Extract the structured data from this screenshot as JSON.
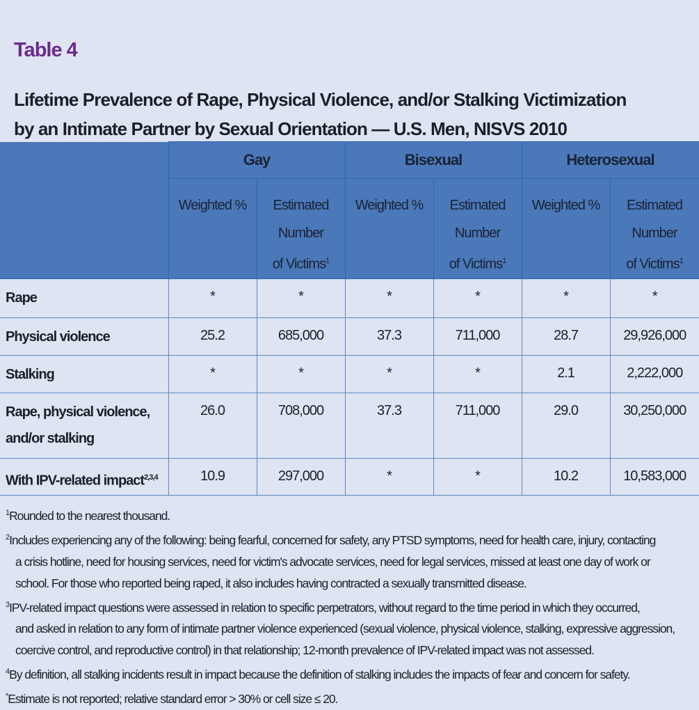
{
  "table_number": "Table 4",
  "title_lines": [
    "Lifetime Prevalence of Rape, Physical Violence, and/or Stalking Victimization",
    "by an Intimate Partner by Sexual Orientation — U.S. Men, NISVS 2010"
  ],
  "colors": {
    "title": "#6a2b8c",
    "header_bg": "#4a78b9",
    "page_bg": "#dfe4f2"
  },
  "groups": [
    "Gay",
    "Bisexual",
    "Heterosexual"
  ],
  "subheaders": {
    "weighted": "Weighted %",
    "est_1": "Estimated",
    "est_2": "Number",
    "est_3": "of Victims",
    "est_sup": "1"
  },
  "rows": [
    {
      "label": "Rape",
      "label2": "",
      "sup": "",
      "values": [
        "*",
        "*",
        "*",
        "*",
        "*",
        "*"
      ]
    },
    {
      "label": "Physical violence",
      "label2": "",
      "sup": "",
      "values": [
        "25.2",
        "685,000",
        "37.3",
        "711,000",
        "28.7",
        "29,926,000"
      ]
    },
    {
      "label": "Stalking",
      "label2": "",
      "sup": "",
      "values": [
        "*",
        "*",
        "*",
        "*",
        "2.1",
        "2,222,000"
      ]
    },
    {
      "label": "Rape, physical violence,",
      "label2": "and/or stalking",
      "sup": "",
      "values": [
        "26.0",
        "708,000",
        "37.3",
        "711,000",
        "29.0",
        "30,250,000"
      ]
    },
    {
      "label": "With IPV-related impact",
      "label2": "",
      "sup": "2,3,4",
      "values": [
        "10.9",
        "297,000",
        "*",
        "*",
        "10.2",
        "10,583,000"
      ]
    }
  ],
  "footnotes": [
    {
      "mark": "1",
      "lines": [
        "Rounded to the nearest thousand."
      ]
    },
    {
      "mark": "2",
      "lines": [
        "Includes experiencing any of the following: being fearful, concerned for safety, any PTSD symptoms, need for health care, injury, contacting",
        "a crisis hotline, need for housing services, need for victim's advocate services, need for legal services, missed at least one day of work or",
        "school. For those who reported being raped, it also includes having contracted a sexually transmitted disease."
      ]
    },
    {
      "mark": "3",
      "lines": [
        "IPV-related impact questions were assessed in relation to specific perpetrators, without regard to the time period in which they occurred,",
        "and asked in relation to any form of intimate partner violence experienced (sexual violence, physical violence, stalking, expressive aggression,",
        "coercive control, and reproductive control) in that relationship; 12-month prevalence of IPV-related impact was not assessed."
      ]
    },
    {
      "mark": "4",
      "lines": [
        "By definition, all stalking incidents result in impact because the definition of stalking includes the impacts of fear and concern for safety."
      ]
    },
    {
      "mark": "*",
      "lines": [
        "Estimate is not reported; relative standard error > 30% or cell size ≤ 20."
      ]
    }
  ]
}
